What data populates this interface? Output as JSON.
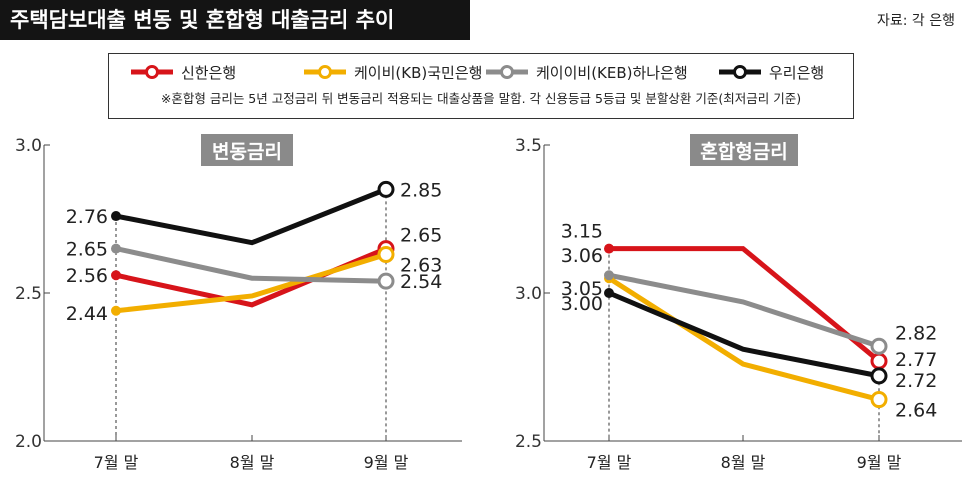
{
  "header": {
    "title": "주택담보대출 변동 및 혼합형 대출금리 추이",
    "source": "자료: 각 은행"
  },
  "legend": {
    "items": [
      {
        "name": "신한은행",
        "color": "#d7141a"
      },
      {
        "name": "케이비(KB)국민은행",
        "color": "#f2ae00"
      },
      {
        "name": "케이이비(KEB)하나은행",
        "color": "#8c8c8c"
      },
      {
        "name": "우리은행",
        "color": "#111111"
      }
    ],
    "note": "※혼합형 금리는 5년 고정금리 뒤 변동금리 적용되는 대출상품을 말함. 각 신용등급 5등급 및 분할상환 기준(최저금리 기준)"
  },
  "chart_data": [
    {
      "type": "line",
      "title": "변동금리",
      "categories": [
        "7월 말",
        "8월 말",
        "9월 말"
      ],
      "ylim": [
        2.0,
        3.0
      ],
      "yticks": [
        "2.0",
        "2.5",
        "3.0"
      ],
      "series": [
        {
          "name": "신한은행",
          "color": "#d7141a",
          "values": [
            2.56,
            2.46,
            2.65
          ],
          "labels": [
            "2.56",
            "",
            "2.65"
          ]
        },
        {
          "name": "케이비(KB)국민은행",
          "color": "#f2ae00",
          "values": [
            2.44,
            2.49,
            2.63
          ],
          "labels": [
            "2.44",
            "",
            "2.63"
          ]
        },
        {
          "name": "케이이비(KEB)하나은행",
          "color": "#8c8c8c",
          "values": [
            2.65,
            2.55,
            2.54
          ],
          "labels": [
            "2.65",
            "",
            "2.54"
          ]
        },
        {
          "name": "우리은행",
          "color": "#111111",
          "values": [
            2.76,
            2.67,
            2.85
          ],
          "labels": [
            "2.76",
            "",
            "2.85"
          ]
        }
      ]
    },
    {
      "type": "line",
      "title": "혼합형금리",
      "categories": [
        "7월 말",
        "8월 말",
        "9월 말"
      ],
      "ylim": [
        2.5,
        3.5
      ],
      "yticks": [
        "2.5",
        "3.0",
        "3.5"
      ],
      "series": [
        {
          "name": "신한은행",
          "color": "#d7141a",
          "values": [
            3.15,
            3.15,
            2.77
          ],
          "labels": [
            "3.15",
            "",
            "2.77"
          ]
        },
        {
          "name": "케이비(KB)국민은행",
          "color": "#f2ae00",
          "values": [
            3.05,
            2.76,
            2.64
          ],
          "labels": [
            "3.05",
            "",
            "2.64"
          ]
        },
        {
          "name": "케이이비(KEB)하나은행",
          "color": "#8c8c8c",
          "values": [
            3.06,
            2.97,
            2.82
          ],
          "labels": [
            "3.06",
            "",
            "2.82"
          ]
        },
        {
          "name": "우리은행",
          "color": "#111111",
          "values": [
            3.0,
            2.81,
            2.72
          ],
          "labels": [
            "3.00",
            "",
            "2.72"
          ]
        }
      ]
    }
  ]
}
